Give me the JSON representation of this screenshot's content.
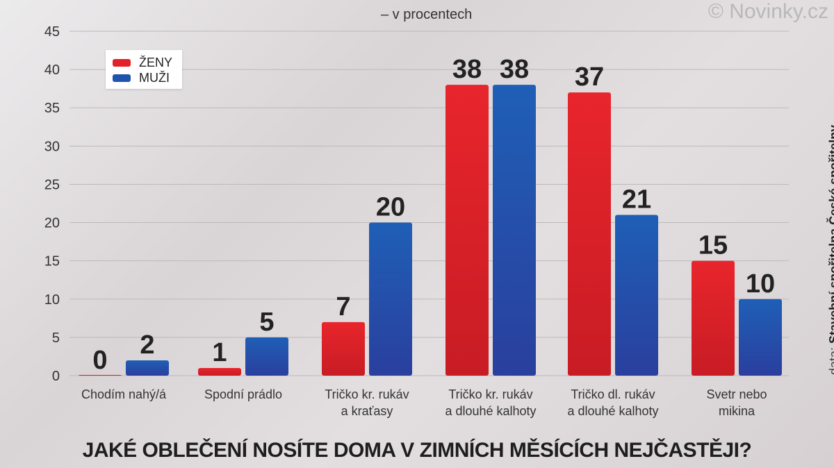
{
  "watermark": "© Novinky.cz",
  "subtitle": "– v procentech",
  "title": "JAKÉ OBLEČENÍ NOSÍTE DOMA V ZIMNÍCH MĚSÍCÍCH NEJČASTĚJI?",
  "source": {
    "prefix": "data:",
    "name": "Stavební spořitelna České spořitelny"
  },
  "colors": {
    "zeny": "#e2222a",
    "muzi": "#1d55ad",
    "grid": "#bdb8ba"
  },
  "chart_data": {
    "type": "bar",
    "categories": [
      [
        "Chodím nahý/á"
      ],
      [
        "Spodní prádlo"
      ],
      [
        "Tričko kr. rukáv",
        "a kraťasy"
      ],
      [
        "Tričko kr. rukáv",
        "a dlouhé kalhoty"
      ],
      [
        "Tričko dl. rukáv",
        "a dlouhé kalhoty"
      ],
      [
        "Svetr nebo",
        "mikina"
      ]
    ],
    "series": [
      {
        "name": "ŽENY",
        "values": [
          0,
          1,
          7,
          38,
          37,
          15
        ]
      },
      {
        "name": "MUŽI",
        "values": [
          2,
          5,
          20,
          38,
          21,
          10
        ]
      }
    ],
    "ylim": [
      0,
      45
    ],
    "yticks": [
      0,
      5,
      10,
      15,
      20,
      25,
      30,
      35,
      40,
      45
    ],
    "grid": true,
    "legend": "top-left"
  }
}
